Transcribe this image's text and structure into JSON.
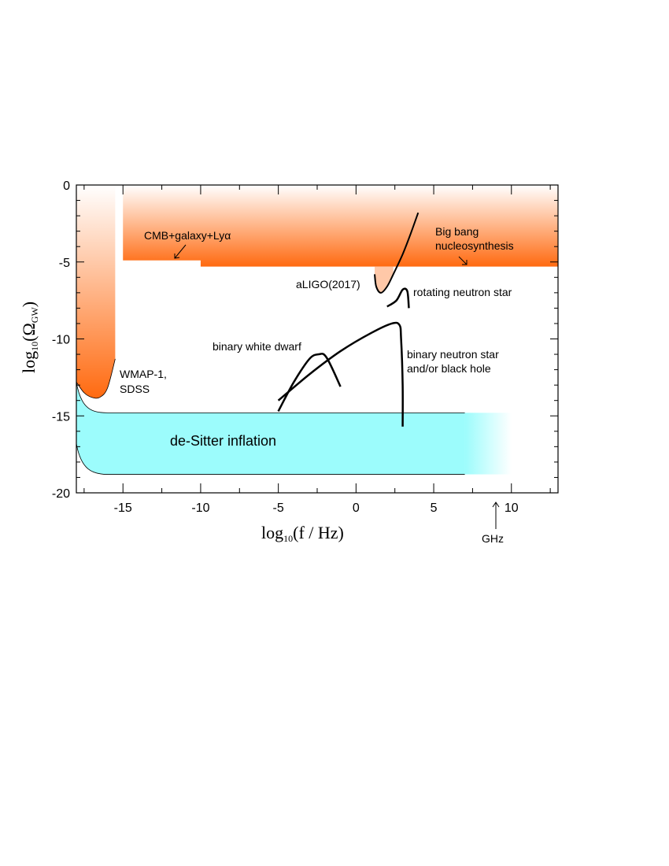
{
  "chart_data": {
    "type": "area",
    "xlabel": {
      "prefix": "log",
      "sub": "10",
      "body": "(f / Hz)"
    },
    "ylabel": {
      "prefix": "log",
      "sub": "10",
      "body": "(Ω",
      "body_sub": "GW",
      "close": ")"
    },
    "xlim": [
      -18,
      13
    ],
    "ylim": [
      -20,
      0
    ],
    "x_ticks": [
      -15,
      -10,
      -5,
      0,
      5,
      10
    ],
    "x_tick_labels": [
      "-15",
      "-10",
      "-5",
      "0",
      "5",
      "10"
    ],
    "y_ticks": [
      0,
      -5,
      -10,
      -15,
      -20
    ],
    "y_tick_labels": [
      "0",
      "-5",
      "-10",
      "-15",
      "-20"
    ],
    "colors": {
      "constraint": "#ff6a10",
      "inflation": "#9cfcfc",
      "curve": "#000000"
    },
    "annotations": {
      "cmb": "CMB+galaxy+Lyα",
      "bbn_line1": "Big bang",
      "bbn_line2": "nucleosynthesis",
      "aligo": "aLIGO(2017)",
      "rotating": "rotating neutron star",
      "wmap_line1": "WMAP-1,",
      "wmap_line2": "SDSS",
      "bwd": "binary white dwarf",
      "bns_line1": "binary neutron star",
      "bns_line2": "and/or black hole",
      "inflation": "de-Sitter inflation",
      "ghz": "GHz"
    },
    "regions": [
      {
        "name": "WMAP-1, SDSS",
        "x": [
          -18,
          -17.5,
          -17,
          -16.5,
          -16,
          -15.5
        ],
        "y_lower": [
          -12.8,
          -13.5,
          -13.8,
          -13.8,
          -13.2,
          -11.3
        ],
        "y_upper": 0
      },
      {
        "name": "CMB+galaxy+Lyα",
        "x": [
          -15,
          -10,
          -10,
          13
        ],
        "y_lower": [
          -4.9,
          -4.9,
          -5.3,
          -5.3
        ],
        "y_upper": 0
      },
      {
        "name": "aLIGO(2017)",
        "x": [
          1.2,
          1.3,
          1.6,
          2.0,
          2.4,
          3.0,
          3.5,
          4.0
        ],
        "y": [
          -5.8,
          -6.6,
          -7.0,
          -6.6,
          -5.8,
          -4.5,
          -3.2,
          -1.8
        ]
      },
      {
        "name": "de-Sitter inflation",
        "x": [
          -18,
          7,
          10
        ],
        "y_upper": -14.8,
        "y_lower": -18.8
      }
    ],
    "series": [
      {
        "name": "rotating neutron star",
        "x": [
          2.0,
          2.6,
          3.0,
          3.3,
          3.4
        ],
        "y": [
          -7.9,
          -7.5,
          -6.8,
          -6.9,
          -8.0
        ]
      },
      {
        "name": "binary white dwarf",
        "x": [
          -5.0,
          -4.0,
          -3.0,
          -2.4,
          -1.9,
          -1.0
        ],
        "y": [
          -14.7,
          -12.8,
          -11.3,
          -11.0,
          -11.2,
          -13.1
        ]
      },
      {
        "name": "binary neutron star and/or black hole",
        "x": [
          -5.0,
          -3.0,
          -1.0,
          1.0,
          2.3,
          2.8,
          2.9,
          3.0,
          3.0
        ],
        "y": [
          -14.0,
          -12.3,
          -10.8,
          -9.6,
          -9.0,
          -9.1,
          -10.0,
          -13.0,
          -15.7
        ]
      }
    ]
  }
}
